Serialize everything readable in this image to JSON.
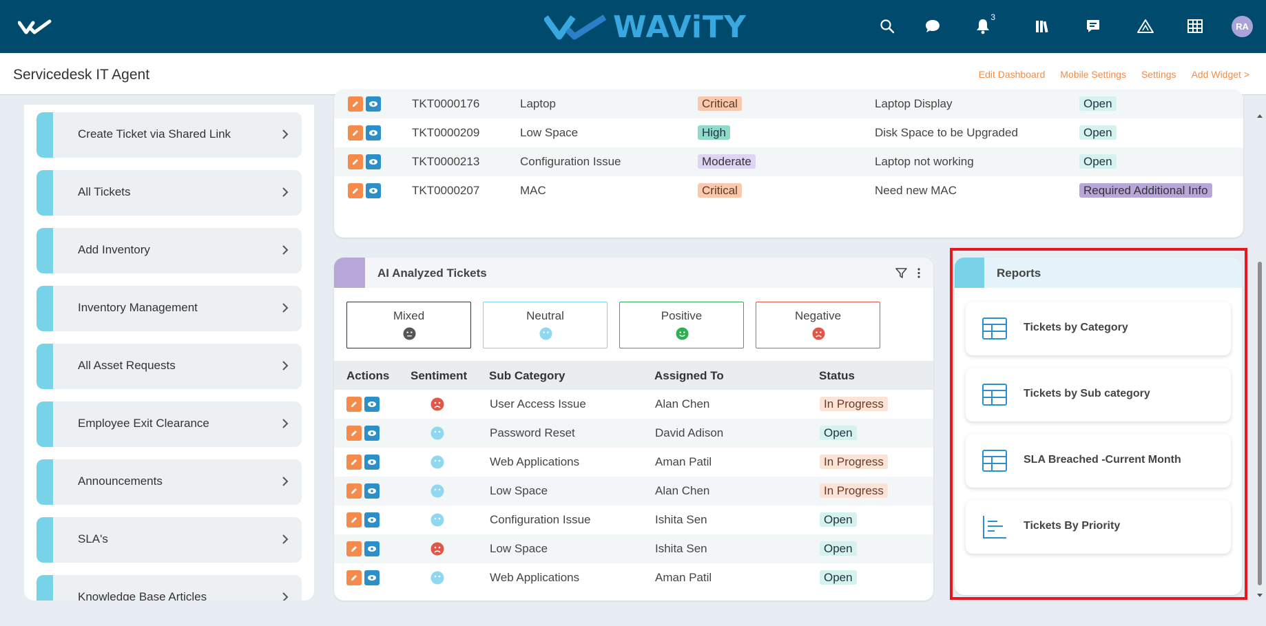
{
  "header": {
    "brand": "WAViTY",
    "notification_count": "3",
    "avatar_initials": "RA",
    "icons": [
      "app-logo-icon",
      "search-icon",
      "chat-icon",
      "bell-icon",
      "library-icon",
      "feedback-icon",
      "warning-icon",
      "grid-icon"
    ]
  },
  "subheader": {
    "title": "Servicedesk IT Agent",
    "links": [
      "Edit Dashboard",
      "Mobile Settings",
      "Settings",
      "Add Widget >"
    ]
  },
  "sidebar": {
    "items": [
      {
        "label": "Create Ticket via Shared Link"
      },
      {
        "label": "All Tickets"
      },
      {
        "label": "Add Inventory"
      },
      {
        "label": "Inventory Management"
      },
      {
        "label": "All Asset Requests"
      },
      {
        "label": "Employee Exit Clearance"
      },
      {
        "label": "Announcements"
      },
      {
        "label": "SLA's"
      },
      {
        "label": "Knowledge Base Articles"
      }
    ]
  },
  "tickets_table": {
    "rows": [
      {
        "id": "TKT0000176",
        "category": "Laptop",
        "priority": "Critical",
        "subject": "Laptop Display",
        "status": "Open"
      },
      {
        "id": "TKT0000209",
        "category": "Low Space",
        "priority": "High",
        "subject": "Disk Space to be Upgraded",
        "status": "Open"
      },
      {
        "id": "TKT0000213",
        "category": "Configuration Issue",
        "priority": "Moderate",
        "subject": "Laptop not working",
        "status": "Open"
      },
      {
        "id": "TKT0000207",
        "category": "MAC",
        "priority": "Critical",
        "subject": "Need new MAC",
        "status": "Required Additional Info"
      }
    ]
  },
  "ai_tickets": {
    "title": "AI Analyzed Tickets",
    "sentiments": [
      {
        "label": "Mixed",
        "color": "#333333"
      },
      {
        "label": "Neutral",
        "color": "#7fd4ef"
      },
      {
        "label": "Positive",
        "color": "#2fae54"
      },
      {
        "label": "Negative",
        "color": "#e2564a"
      }
    ],
    "columns": [
      "Actions",
      "Sentiment",
      "Sub Category",
      "Assigned To",
      "Status"
    ],
    "rows": [
      {
        "sentiment": "negative",
        "sub_category": "User Access Issue",
        "assigned_to": "Alan Chen",
        "status": "In Progress"
      },
      {
        "sentiment": "neutral",
        "sub_category": "Password Reset",
        "assigned_to": "David Adison",
        "status": "Open"
      },
      {
        "sentiment": "neutral",
        "sub_category": "Web Applications",
        "assigned_to": "Aman Patil",
        "status": "In Progress"
      },
      {
        "sentiment": "neutral",
        "sub_category": "Low Space",
        "assigned_to": "Alan Chen",
        "status": "In Progress"
      },
      {
        "sentiment": "neutral",
        "sub_category": "Configuration Issue",
        "assigned_to": "Ishita Sen",
        "status": "Open"
      },
      {
        "sentiment": "negative",
        "sub_category": "Low Space",
        "assigned_to": "Ishita Sen",
        "status": "Open"
      },
      {
        "sentiment": "neutral",
        "sub_category": "Web Applications",
        "assigned_to": "Aman Patil",
        "status": "Open"
      }
    ]
  },
  "reports": {
    "title": "Reports",
    "items": [
      {
        "label": "Tickets by Category",
        "icon": "table-icon"
      },
      {
        "label": "Tickets by Sub category",
        "icon": "table-icon"
      },
      {
        "label": "SLA Breached -Current Month",
        "icon": "table-icon"
      },
      {
        "label": "Tickets By Priority",
        "icon": "bar-chart-icon"
      }
    ]
  },
  "colors": {
    "header_bg": "#004a6e",
    "accent_orange": "#f08c4a",
    "highlight": "#e8181f"
  }
}
